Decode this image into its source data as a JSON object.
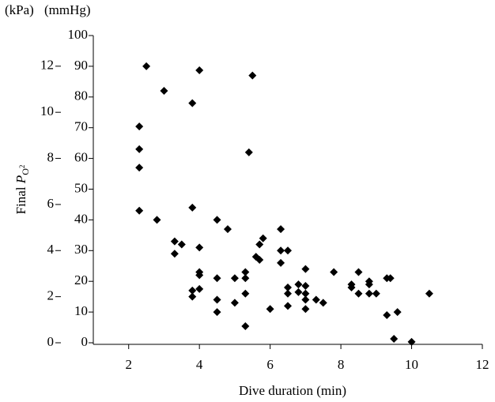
{
  "chart_data": {
    "type": "scatter",
    "y_label": {
      "text": "Final",
      "symbol": "P",
      "subscript": "O",
      "subsubscript": "2"
    },
    "y_unit": "(mmHg)",
    "y2_unit": "(kPa)",
    "x_label": "Dive duration (min)",
    "color": "#000000",
    "xlim": [
      1,
      12
    ],
    "xticks": [
      2,
      4,
      6,
      8,
      10,
      12
    ],
    "ylim": [
      0,
      100
    ],
    "yticks": [
      0,
      10,
      20,
      30,
      40,
      50,
      60,
      70,
      80,
      90,
      100
    ],
    "y2lim": [
      0,
      13.33
    ],
    "y2ticks": [
      0,
      2,
      4,
      6,
      8,
      10,
      12
    ],
    "x": [
      2.5,
      2.3,
      3.0,
      4.0,
      3.8,
      5.5,
      5.4,
      2.3,
      2.3,
      2.3,
      2.8,
      3.8,
      3.3,
      3.3,
      3.5,
      4.0,
      4.5,
      4.8,
      3.8,
      3.8,
      4.0,
      4.0,
      4.0,
      4.5,
      4.5,
      4.5,
      5.0,
      5.0,
      5.3,
      5.3,
      5.3,
      5.3,
      5.6,
      5.8,
      5.7,
      5.7,
      6.0,
      6.3,
      6.3,
      6.3,
      6.5,
      6.5,
      6.5,
      6.5,
      6.8,
      6.8,
      7.0,
      7.0,
      7.0,
      7.0,
      7.0,
      7.3,
      7.5,
      7.8,
      8.3,
      8.3,
      8.5,
      8.5,
      8.8,
      8.8,
      8.8,
      9.0,
      9.3,
      9.3,
      9.4,
      9.5,
      9.6,
      10.0,
      10.5
    ],
    "values": [
      90,
      70.4,
      82,
      88.7,
      78,
      87,
      62,
      63,
      57,
      43,
      40,
      44,
      33,
      29,
      32,
      31,
      40,
      37,
      17,
      15,
      23,
      22,
      17.5,
      21,
      14,
      10,
      21,
      13,
      21,
      23,
      16,
      5.4,
      28,
      34,
      32,
      27,
      11,
      37,
      30,
      26,
      30,
      18,
      16,
      12,
      19,
      16.5,
      24,
      18.5,
      16,
      14,
      11,
      14,
      13,
      23,
      19,
      18,
      23,
      16,
      20,
      19,
      16,
      16,
      21,
      9,
      21,
      1.3,
      10,
      0.3,
      16
    ]
  }
}
